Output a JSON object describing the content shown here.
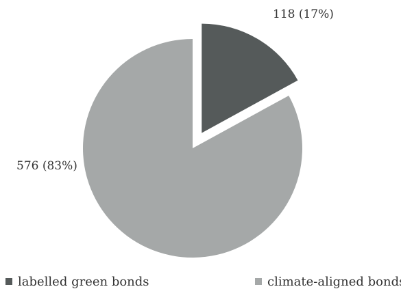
{
  "chart_data": {
    "type": "pie",
    "categories": [
      "labelled green bonds",
      "climate-aligned bonds"
    ],
    "values": [
      118,
      576
    ],
    "percentages": [
      17,
      83
    ],
    "data_labels": [
      "118 (17%)",
      "576 (83%)"
    ],
    "colors": [
      "#555a5a",
      "#a5a8a8"
    ],
    "exploded_slice": "labelled green bonds",
    "legend_position": "bottom"
  },
  "legend": {
    "items": [
      {
        "label": "labelled green bonds",
        "color": "#555a5a"
      },
      {
        "label": "climate-aligned bonds",
        "color": "#a5a8a8"
      }
    ]
  }
}
